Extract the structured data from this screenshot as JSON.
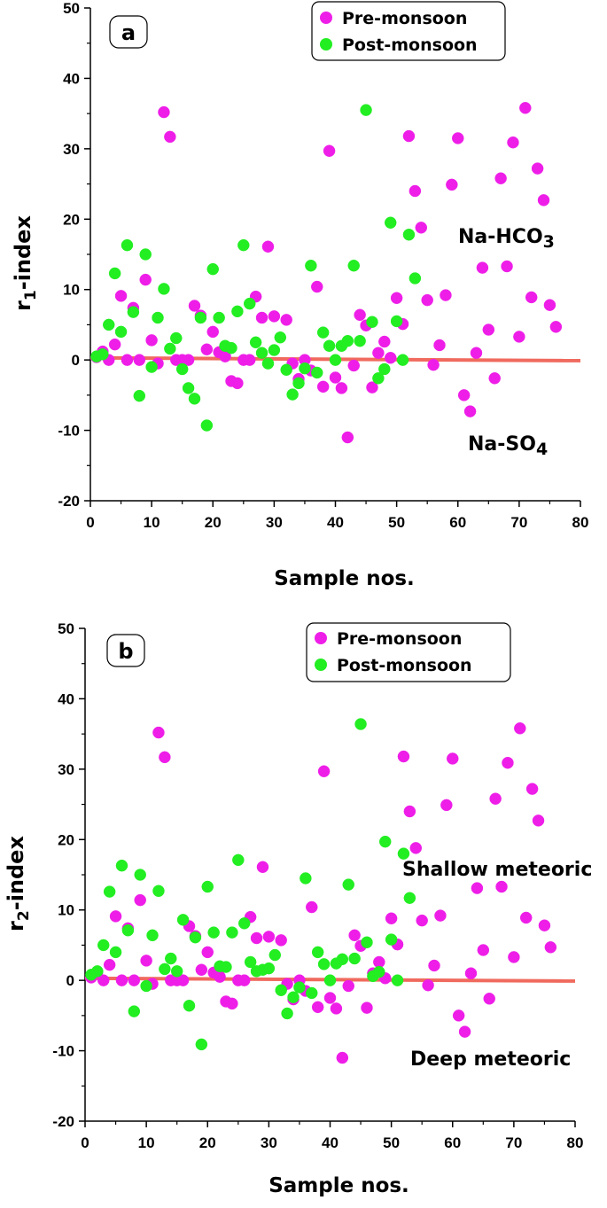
{
  "chart_data": [
    {
      "type": "scatter",
      "panel_label": "a",
      "xlabel": "Sample nos.",
      "ylabel_main": "r",
      "ylabel_sub": "1",
      "ylabel_rest": "-index",
      "xlim": [
        0,
        80
      ],
      "ylim": [
        -20,
        50
      ],
      "xticks": [
        0,
        10,
        20,
        30,
        40,
        50,
        60,
        70,
        80
      ],
      "yticks": [
        -20,
        -10,
        0,
        10,
        20,
        30,
        40,
        50
      ],
      "legend": [
        "Pre-monsoon",
        "Post-monsoon"
      ],
      "annotations": [
        {
          "main": "Na-HCO",
          "sub": "3",
          "pos": "upper-right"
        },
        {
          "main": "Na-SO",
          "sub": "4",
          "pos": "lower-right"
        }
      ],
      "series": [
        {
          "name": "Pre-monsoon",
          "color": "#ee1ee8",
          "points": [
            [
              1,
              0.4
            ],
            [
              2,
              1.2
            ],
            [
              3,
              0
            ],
            [
              4,
              2.2
            ],
            [
              5,
              9.1
            ],
            [
              6,
              0
            ],
            [
              7,
              7.4
            ],
            [
              8,
              0
            ],
            [
              9,
              11.4
            ],
            [
              10,
              2.8
            ],
            [
              11,
              -0.5
            ],
            [
              12,
              35.2
            ],
            [
              13,
              31.7
            ],
            [
              14,
              0
            ],
            [
              15,
              0
            ],
            [
              16,
              0
            ],
            [
              17,
              7.7
            ],
            [
              18,
              6.3
            ],
            [
              19,
              1.5
            ],
            [
              20,
              4
            ],
            [
              21,
              1.1
            ],
            [
              22,
              0.5
            ],
            [
              23,
              -3
            ],
            [
              24,
              -3.3
            ],
            [
              25,
              0
            ],
            [
              26,
              0
            ],
            [
              27,
              9
            ],
            [
              28,
              6
            ],
            [
              29,
              16.1
            ],
            [
              30,
              6.2
            ],
            [
              32,
              5.7
            ],
            [
              33,
              -0.5
            ],
            [
              34,
              -2.7
            ],
            [
              35,
              0
            ],
            [
              36,
              -1.5
            ],
            [
              37,
              10.4
            ],
            [
              38,
              -3.8
            ],
            [
              39,
              29.7
            ],
            [
              40,
              -2.5
            ],
            [
              41,
              -4
            ],
            [
              42,
              -11
            ],
            [
              43,
              -0.8
            ],
            [
              44,
              6.4
            ],
            [
              45,
              4.9
            ],
            [
              46,
              -3.9
            ],
            [
              47,
              1
            ],
            [
              48,
              2.6
            ],
            [
              49,
              0.3
            ],
            [
              50,
              8.8
            ],
            [
              51,
              5.1
            ],
            [
              52,
              31.8
            ],
            [
              53,
              24
            ],
            [
              54,
              18.8
            ],
            [
              55,
              8.5
            ],
            [
              56,
              -0.7
            ],
            [
              57,
              2.1
            ],
            [
              58,
              9.2
            ],
            [
              59,
              24.9
            ],
            [
              60,
              31.5
            ],
            [
              61,
              -5
            ],
            [
              62,
              -7.3
            ],
            [
              63,
              1
            ],
            [
              64,
              13.1
            ],
            [
              65,
              4.3
            ],
            [
              66,
              -2.6
            ],
            [
              67,
              25.8
            ],
            [
              68,
              13.3
            ],
            [
              69,
              30.9
            ],
            [
              70,
              3.3
            ],
            [
              71,
              35.8
            ],
            [
              72,
              8.9
            ],
            [
              73,
              27.2
            ],
            [
              74,
              22.7
            ],
            [
              75,
              7.8
            ],
            [
              76,
              4.7
            ]
          ]
        },
        {
          "name": "Post-monsoon",
          "color": "#22ee22",
          "points": [
            [
              1,
              0.5
            ],
            [
              2,
              0.8
            ],
            [
              3,
              5
            ],
            [
              4,
              12.3
            ],
            [
              5,
              4
            ],
            [
              6,
              16.3
            ],
            [
              7,
              6.8
            ],
            [
              8,
              -5.1
            ],
            [
              9,
              15
            ],
            [
              10,
              -1
            ],
            [
              11,
              6
            ],
            [
              12,
              10.1
            ],
            [
              13,
              1.6
            ],
            [
              14,
              3.1
            ],
            [
              15,
              -1.3
            ],
            [
              16,
              -4
            ],
            [
              17,
              -5.5
            ],
            [
              18,
              6
            ],
            [
              19,
              -9.3
            ],
            [
              20,
              12.9
            ],
            [
              21,
              6
            ],
            [
              22,
              2
            ],
            [
              23,
              1.7
            ],
            [
              24,
              6.9
            ],
            [
              25,
              16.3
            ],
            [
              26,
              8
            ],
            [
              27,
              2.5
            ],
            [
              28,
              1
            ],
            [
              29,
              -0.5
            ],
            [
              30,
              1.4
            ],
            [
              31,
              3.2
            ],
            [
              32,
              -1.4
            ],
            [
              33,
              -4.9
            ],
            [
              34,
              -3.3
            ],
            [
              35,
              -1.2
            ],
            [
              36,
              13.4
            ],
            [
              37,
              -1.8
            ],
            [
              38,
              3.9
            ],
            [
              39,
              2
            ],
            [
              40,
              0
            ],
            [
              41,
              2
            ],
            [
              42,
              2.7
            ],
            [
              43,
              13.4
            ],
            [
              44,
              2.7
            ],
            [
              45,
              35.5
            ],
            [
              46,
              5.4
            ],
            [
              47,
              -2.6
            ],
            [
              48,
              -1.3
            ],
            [
              49,
              19.5
            ],
            [
              50,
              5.5
            ],
            [
              51,
              0
            ],
            [
              52,
              17.8
            ],
            [
              53,
              11.6
            ]
          ]
        }
      ],
      "fit_line": {
        "color": "#f06a5e",
        "points": [
          [
            0,
            0.3
          ],
          [
            80,
            -0.1
          ]
        ]
      }
    },
    {
      "type": "scatter",
      "panel_label": "b",
      "xlabel": "Sample nos.",
      "ylabel_main": "r",
      "ylabel_sub": "2",
      "ylabel_rest": "-index",
      "xlim": [
        0,
        80
      ],
      "ylim": [
        -20,
        50
      ],
      "xticks": [
        0,
        10,
        20,
        30,
        40,
        50,
        60,
        70,
        80
      ],
      "yticks": [
        -20,
        -10,
        0,
        10,
        20,
        30,
        40,
        50
      ],
      "legend": [
        "Pre-monsoon",
        "Post-monsoon"
      ],
      "annotations": [
        {
          "main": "Shallow meteoric",
          "sub": "",
          "pos": "upper-right"
        },
        {
          "main": "Deep meteoric",
          "sub": "",
          "pos": "lower-right"
        }
      ],
      "series": [
        {
          "name": "Pre-monsoon",
          "color": "#ee1ee8",
          "points": [
            [
              1,
              0.4
            ],
            [
              2,
              1.2
            ],
            [
              3,
              0
            ],
            [
              4,
              2.2
            ],
            [
              5,
              9.1
            ],
            [
              6,
              0
            ],
            [
              7,
              7.4
            ],
            [
              8,
              0
            ],
            [
              9,
              11.4
            ],
            [
              10,
              2.8
            ],
            [
              11,
              -0.5
            ],
            [
              12,
              35.2
            ],
            [
              13,
              31.7
            ],
            [
              14,
              0
            ],
            [
              15,
              0
            ],
            [
              16,
              0
            ],
            [
              17,
              7.7
            ],
            [
              18,
              6.3
            ],
            [
              19,
              1.5
            ],
            [
              20,
              4
            ],
            [
              21,
              1.1
            ],
            [
              22,
              0.5
            ],
            [
              23,
              -3
            ],
            [
              24,
              -3.3
            ],
            [
              25,
              0
            ],
            [
              26,
              0
            ],
            [
              27,
              9
            ],
            [
              28,
              6
            ],
            [
              29,
              16.1
            ],
            [
              30,
              6.2
            ],
            [
              32,
              5.7
            ],
            [
              33,
              -0.5
            ],
            [
              34,
              -2.7
            ],
            [
              35,
              0
            ],
            [
              36,
              -1.5
            ],
            [
              37,
              10.4
            ],
            [
              38,
              -3.8
            ],
            [
              39,
              29.7
            ],
            [
              40,
              -2.5
            ],
            [
              41,
              -4
            ],
            [
              42,
              -11
            ],
            [
              43,
              -0.8
            ],
            [
              44,
              6.4
            ],
            [
              45,
              4.9
            ],
            [
              46,
              -3.9
            ],
            [
              47,
              1
            ],
            [
              48,
              2.6
            ],
            [
              49,
              0.3
            ],
            [
              50,
              8.8
            ],
            [
              51,
              5.1
            ],
            [
              52,
              31.8
            ],
            [
              53,
              24
            ],
            [
              54,
              18.8
            ],
            [
              55,
              8.5
            ],
            [
              56,
              -0.7
            ],
            [
              57,
              2.1
            ],
            [
              58,
              9.2
            ],
            [
              59,
              24.9
            ],
            [
              60,
              31.5
            ],
            [
              61,
              -5
            ],
            [
              62,
              -7.3
            ],
            [
              63,
              1
            ],
            [
              64,
              13.1
            ],
            [
              65,
              4.3
            ],
            [
              66,
              -2.6
            ],
            [
              67,
              25.8
            ],
            [
              68,
              13.3
            ],
            [
              69,
              30.9
            ],
            [
              70,
              3.3
            ],
            [
              71,
              35.8
            ],
            [
              72,
              8.9
            ],
            [
              73,
              27.2
            ],
            [
              74,
              22.7
            ],
            [
              75,
              7.8
            ],
            [
              76,
              4.7
            ]
          ]
        },
        {
          "name": "Post-monsoon",
          "color": "#22ee22",
          "points": [
            [
              1,
              0.8
            ],
            [
              2,
              1.3
            ],
            [
              3,
              5
            ],
            [
              4,
              12.6
            ],
            [
              5,
              4
            ],
            [
              6,
              16.3
            ],
            [
              7,
              7.1
            ],
            [
              8,
              -4.4
            ],
            [
              9,
              15
            ],
            [
              10,
              -0.8
            ],
            [
              11,
              6.4
            ],
            [
              12,
              12.7
            ],
            [
              13,
              1.6
            ],
            [
              14,
              3.1
            ],
            [
              15,
              1.3
            ],
            [
              16,
              8.6
            ],
            [
              17,
              -3.6
            ],
            [
              18,
              6.1
            ],
            [
              19,
              -9.1
            ],
            [
              20,
              13.3
            ],
            [
              21,
              6.8
            ],
            [
              22,
              2
            ],
            [
              23,
              1.9
            ],
            [
              24,
              6.8
            ],
            [
              25,
              17.1
            ],
            [
              26,
              8.1
            ],
            [
              27,
              2.6
            ],
            [
              28,
              1.3
            ],
            [
              29,
              1.5
            ],
            [
              30,
              1.7
            ],
            [
              31,
              3.6
            ],
            [
              32,
              -1.4
            ],
            [
              33,
              -4.7
            ],
            [
              34,
              -2.4
            ],
            [
              35,
              -1
            ],
            [
              36,
              14.5
            ],
            [
              37,
              -1.8
            ],
            [
              38,
              4
            ],
            [
              39,
              2.3
            ],
            [
              40,
              0
            ],
            [
              41,
              2.4
            ],
            [
              42,
              3
            ],
            [
              43,
              13.6
            ],
            [
              44,
              3.1
            ],
            [
              45,
              36.4
            ],
            [
              46,
              5.4
            ],
            [
              47,
              0.6
            ],
            [
              48,
              1.2
            ],
            [
              49,
              19.7
            ],
            [
              50,
              5.8
            ],
            [
              51,
              0
            ],
            [
              52,
              18
            ],
            [
              53,
              11.7
            ]
          ]
        }
      ],
      "fit_line": {
        "color": "#f06a5e",
        "points": [
          [
            0,
            0.3
          ],
          [
            80,
            -0.1
          ]
        ]
      }
    }
  ]
}
